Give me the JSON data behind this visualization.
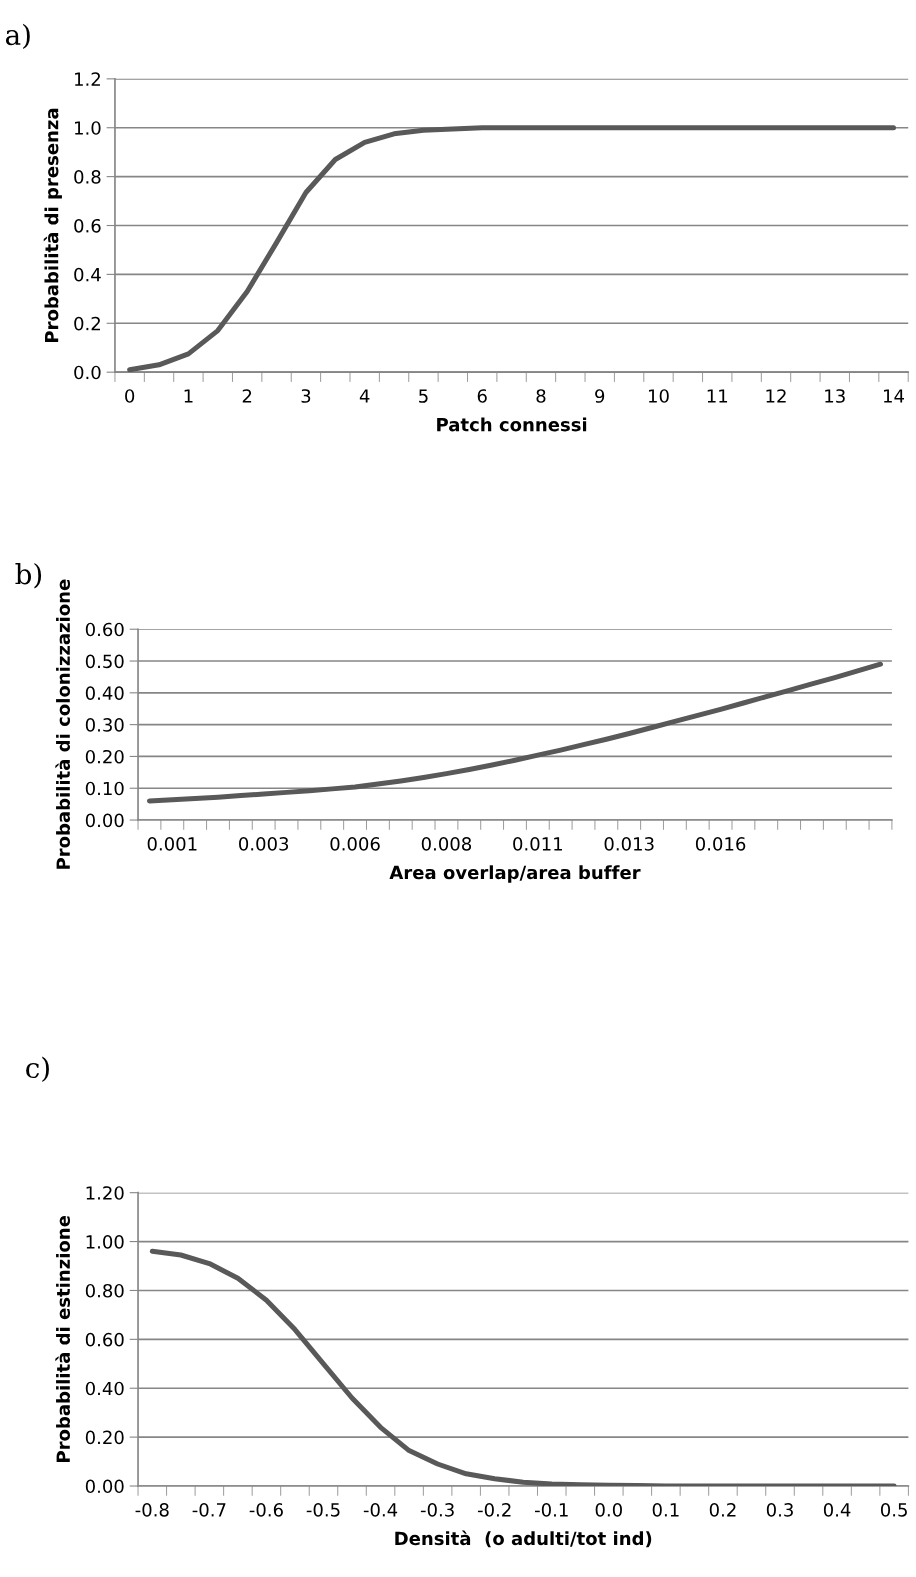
{
  "chart_data": [
    {
      "type": "line",
      "title": "a)",
      "xlabel": "Patch connessi",
      "ylabel": "Probabilità di presenza",
      "categories": [
        "0",
        null,
        "1",
        null,
        "2",
        null,
        "3",
        null,
        "4",
        null,
        "5",
        null,
        "6",
        null,
        "8",
        null,
        "9",
        null,
        "10",
        null,
        "11",
        null,
        "12",
        null,
        "13",
        null,
        "14"
      ],
      "series": [
        {
          "color": "#595959",
          "values": [
            0.01,
            0.03,
            0.075,
            0.17,
            0.33,
            0.53,
            0.735,
            0.87,
            0.94,
            0.975,
            0.99,
            0.995,
            1.0,
            1.0,
            1.0,
            1.0,
            1.0,
            1.0,
            1.0,
            1.0,
            1.0,
            1.0,
            1.0,
            1.0,
            1.0,
            1.0,
            1.0
          ]
        }
      ],
      "ylim": [
        0,
        1.2
      ],
      "yticks": [
        {
          "value": 0,
          "label": "0.0"
        },
        {
          "value": 0.2,
          "label": "0.2"
        },
        {
          "value": 0.4,
          "label": "0.4"
        },
        {
          "value": 0.6,
          "label": "0.6"
        },
        {
          "value": 0.8,
          "label": "0.8"
        },
        {
          "value": 1.0,
          "label": "1.0"
        },
        {
          "value": 1.2,
          "label": "1.2"
        }
      ],
      "grid": "y",
      "marker": "none",
      "line_style": "solid"
    },
    {
      "type": "line",
      "title": "b)",
      "xlabel": "Area overlap/area buffer",
      "ylabel": "Probabilità di colonizzazione",
      "categories": [
        null,
        "0.001",
        null,
        null,
        null,
        "0.003",
        null,
        null,
        null,
        "0.006",
        null,
        null,
        null,
        "0.008",
        null,
        null,
        null,
        "0.011",
        null,
        null,
        null,
        "0.013",
        null,
        null,
        null,
        "0.016",
        null,
        null,
        null,
        null,
        null,
        null,
        null
      ],
      "series": [
        {
          "color": "#595959",
          "values": [
            0.06,
            0.064,
            0.068,
            0.072,
            0.077,
            0.082,
            0.087,
            0.092,
            0.098,
            0.104,
            0.113,
            0.123,
            0.134,
            0.146,
            0.159,
            0.173,
            0.188,
            0.204,
            0.22,
            0.237,
            0.254,
            0.272,
            0.291,
            0.31,
            0.329,
            0.348,
            0.368,
            0.388,
            0.408,
            0.428,
            0.448,
            0.469,
            0.49
          ]
        }
      ],
      "ylim": [
        0,
        0.6
      ],
      "yticks": [
        {
          "value": 0,
          "label": "0.00"
        },
        {
          "value": 0.1,
          "label": "0.10"
        },
        {
          "value": 0.2,
          "label": "0.20"
        },
        {
          "value": 0.3,
          "label": "0.30"
        },
        {
          "value": 0.4,
          "label": "0.40"
        },
        {
          "value": 0.5,
          "label": "0.50"
        },
        {
          "value": 0.6,
          "label": "0.60"
        }
      ],
      "grid": "y",
      "marker": "none",
      "line_style": "solid"
    },
    {
      "type": "line",
      "title": "c)",
      "xlabel": "Densità  (o adulti/tot ind)",
      "ylabel": "Probabilità di estinzione",
      "categories": [
        "-0.8",
        null,
        "-0.7",
        null,
        "-0.6",
        null,
        "-0.5",
        null,
        "-0.4",
        null,
        "-0.3",
        null,
        "-0.2",
        null,
        "-0.1",
        null,
        "0.0",
        null,
        "0.1",
        null,
        "0.2",
        null,
        "0.3",
        null,
        "0.4",
        null,
        "0.5"
      ],
      "series": [
        {
          "color": "#595959",
          "values": [
            0.96,
            0.945,
            0.91,
            0.85,
            0.76,
            0.64,
            0.5,
            0.36,
            0.24,
            0.145,
            0.09,
            0.05,
            0.03,
            0.015,
            0.008,
            0.005,
            0.003,
            0.002,
            0.0,
            0.0,
            0.0,
            0.0,
            0.0,
            0.0,
            0.0,
            0.0,
            0.0
          ]
        }
      ],
      "ylim": [
        0,
        1.2
      ],
      "yticks": [
        {
          "value": 0,
          "label": "0.00"
        },
        {
          "value": 0.2,
          "label": "0.20"
        },
        {
          "value": 0.4,
          "label": "0.40"
        },
        {
          "value": 0.6,
          "label": "0.60"
        },
        {
          "value": 0.8,
          "label": "0.80"
        },
        {
          "value": 1.0,
          "label": "1.00"
        },
        {
          "value": 1.2,
          "label": "1.20"
        }
      ],
      "grid": "y",
      "marker": "none",
      "line_style": "solid"
    }
  ]
}
